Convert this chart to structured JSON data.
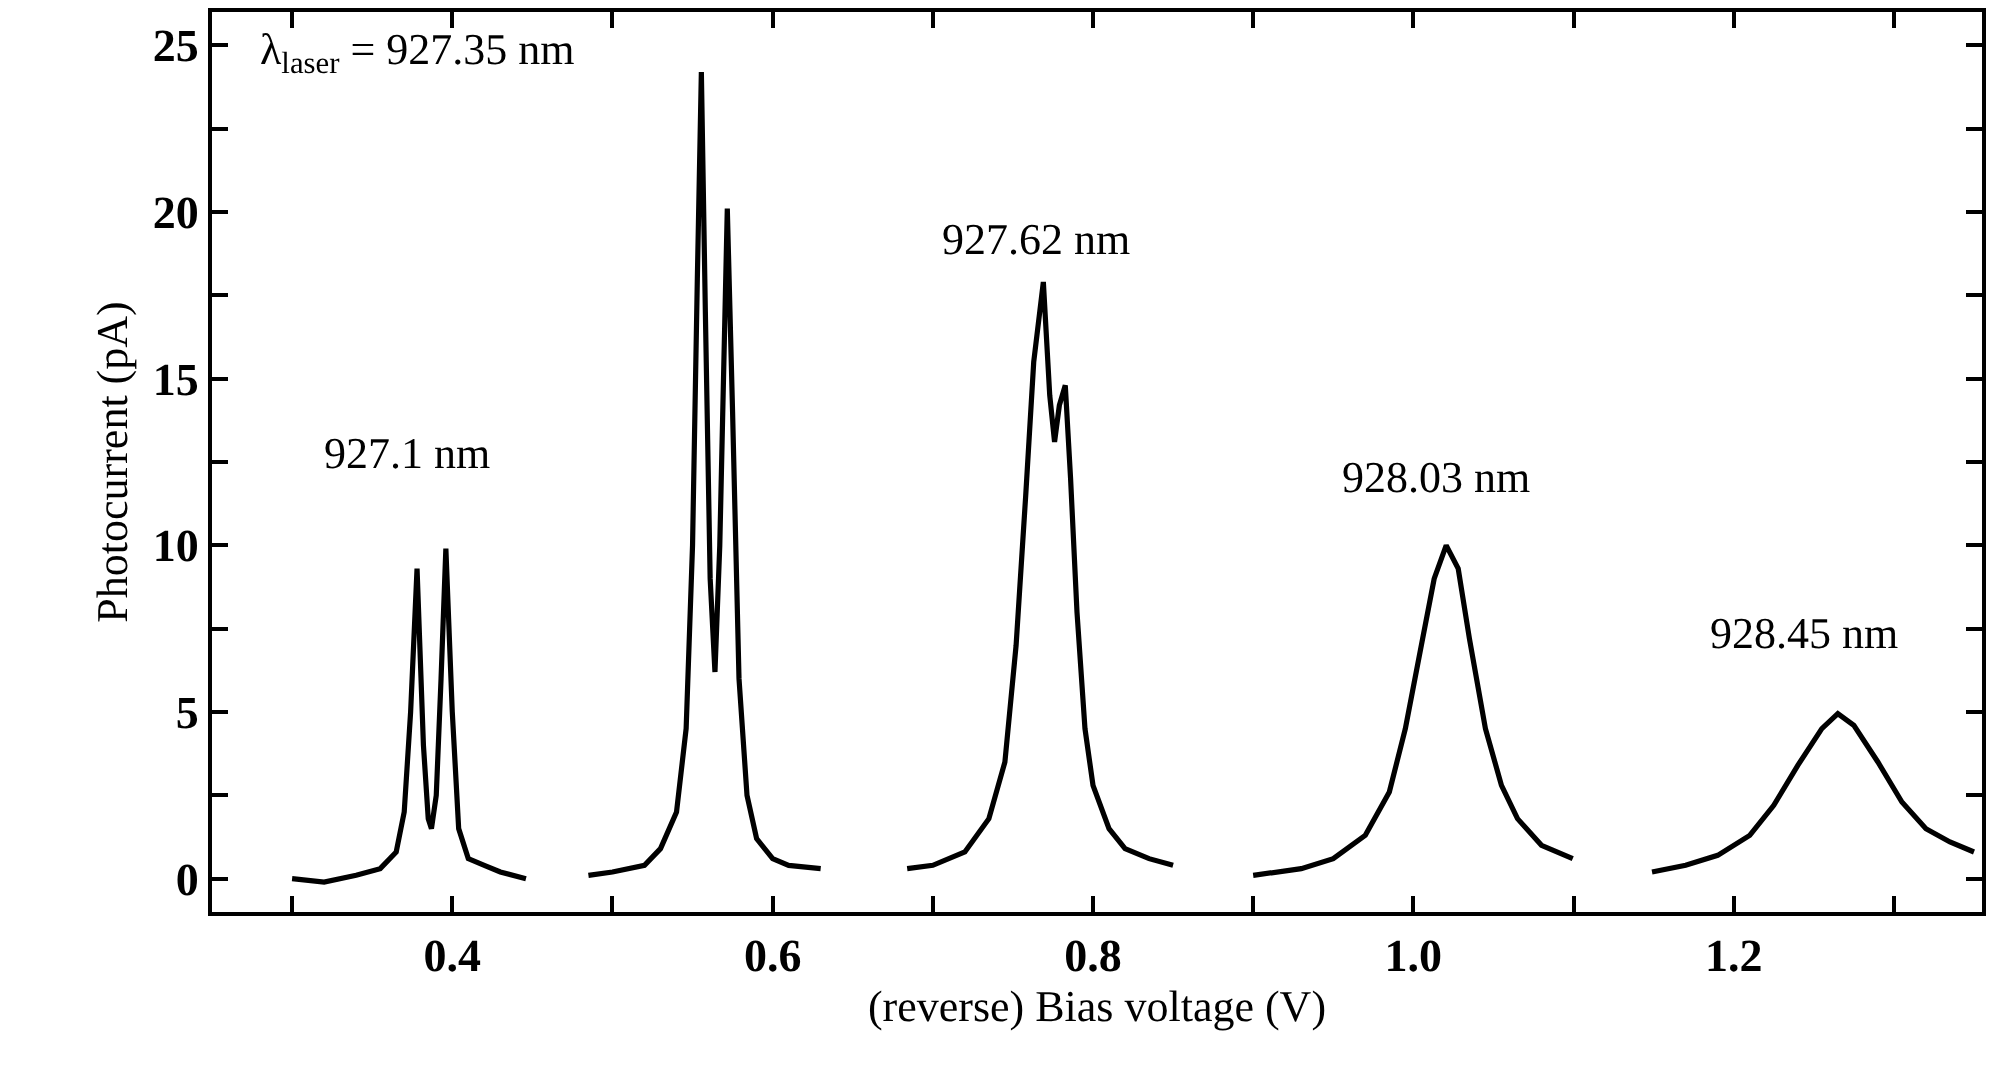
{
  "chart_data": {
    "type": "line",
    "xlabel": "(reverse) Bias voltage (V)",
    "ylabel": "Photocurrent (pA)",
    "xlim": [
      0.25,
      1.355
    ],
    "ylim": [
      -1,
      26
    ],
    "xticks": [
      {
        "value": 0.3,
        "label": null
      },
      0.4,
      {
        "value": 0.5,
        "label": null
      },
      0.6,
      {
        "value": 0.7,
        "label": null
      },
      0.8,
      {
        "value": 0.9,
        "label": null
      },
      {
        "value": 1.0,
        "label": "1.0"
      },
      {
        "value": 1.1,
        "label": null
      },
      1.2,
      {
        "value": 1.3,
        "label": null
      }
    ],
    "yticks": [
      0,
      {
        "value": 2.5,
        "label": null
      },
      5,
      {
        "value": 7.5,
        "label": null
      },
      10,
      {
        "value": 12.5,
        "label": null
      },
      15,
      {
        "value": 17.5,
        "label": null
      },
      20,
      {
        "value": 22.5,
        "label": null
      },
      25
    ],
    "grid": false,
    "marker": "none",
    "line_style": "solid",
    "series": [
      {
        "color": "#000000",
        "x": [
          0.3,
          0.32,
          0.34,
          0.355,
          0.365,
          0.37,
          0.374,
          0.378,
          0.382,
          0.385,
          0.387,
          0.39,
          0.393,
          0.396,
          0.4,
          0.404,
          0.41,
          0.42,
          0.43,
          0.446,
          0.465,
          0.485,
          0.5,
          0.52,
          0.53,
          0.54,
          0.546,
          0.55,
          0.553,
          0.5555,
          0.558,
          0.561,
          0.564,
          0.567,
          0.5717,
          0.575,
          0.579,
          0.584,
          0.59,
          0.6,
          0.61,
          0.63,
          0.66,
          0.684,
          0.7,
          0.72,
          0.735,
          0.745,
          0.752,
          0.758,
          0.763,
          0.769,
          0.773,
          0.776,
          0.779,
          0.7827,
          0.786,
          0.79,
          0.795,
          0.8,
          0.81,
          0.82,
          0.835,
          0.85,
          0.875,
          0.9,
          0.93,
          0.95,
          0.97,
          0.985,
          0.995,
          1.005,
          1.013,
          1.0205,
          1.028,
          1.035,
          1.045,
          1.055,
          1.065,
          1.08,
          1.0995,
          1.125,
          1.149,
          1.17,
          1.19,
          1.21,
          1.225,
          1.24,
          1.255,
          1.265,
          1.275,
          1.29,
          1.305,
          1.32,
          1.335,
          1.35
        ],
        "values": [
          0.0,
          -0.1,
          0.1,
          0.3,
          0.8,
          2.0,
          5.0,
          9.3,
          4.0,
          1.8,
          1.5,
          2.5,
          6.0,
          9.9,
          5.0,
          1.5,
          0.6,
          0.4,
          0.2,
          0.0,
          null,
          0.1,
          0.2,
          0.4,
          0.9,
          2.0,
          4.5,
          10.0,
          18.0,
          24.2,
          17.0,
          9.0,
          6.2,
          10.0,
          20.1,
          14.0,
          6.0,
          2.5,
          1.2,
          0.6,
          0.4,
          0.3,
          null,
          0.3,
          0.4,
          0.8,
          1.8,
          3.5,
          7.0,
          11.5,
          15.5,
          17.9,
          14.5,
          13.1,
          14.2,
          14.8,
          12.0,
          8.0,
          4.5,
          2.8,
          1.5,
          0.9,
          0.6,
          0.4,
          null,
          0.1,
          0.3,
          0.6,
          1.3,
          2.6,
          4.5,
          7.0,
          9.0,
          10.0,
          9.3,
          7.2,
          4.5,
          2.8,
          1.8,
          1.0,
          0.6,
          null,
          0.2,
          0.4,
          0.7,
          1.3,
          2.2,
          3.4,
          4.5,
          4.95,
          4.6,
          3.5,
          2.3,
          1.5,
          1.1,
          0.8
        ]
      }
    ],
    "annotations": [
      "λ$_{laser}$ = 927.35 nm",
      "927.1 nm",
      "927.62 nm",
      "928.03 nm",
      "928.45 nm"
    ]
  }
}
